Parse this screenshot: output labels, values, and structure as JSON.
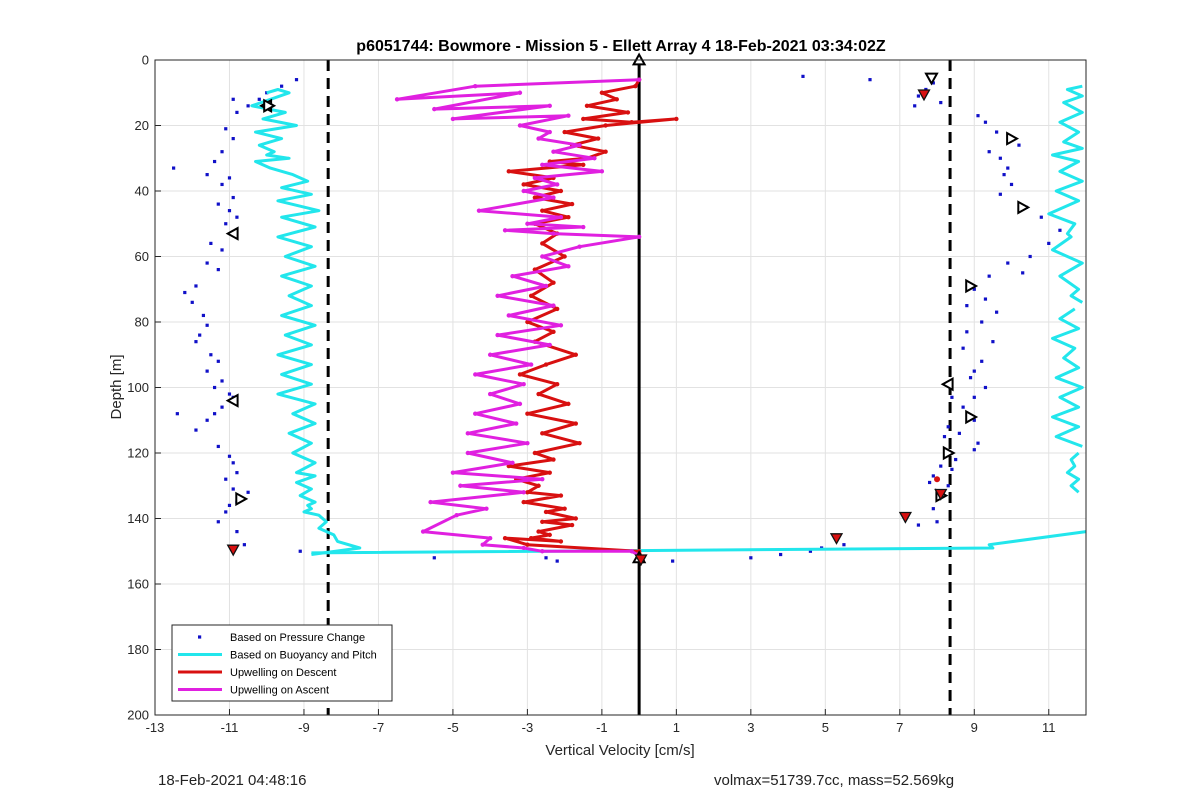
{
  "chart_data": {
    "type": "line",
    "title": "p6051744: Bowmore - Mission 5 - Ellett Array 4 18-Feb-2021 03:34:02Z",
    "xlabel": "Vertical Velocity [cm/s]",
    "ylabel": "Depth [m]",
    "xlim": [
      -13,
      12
    ],
    "ylim": [
      0,
      200
    ],
    "y_reversed": true,
    "grid": true,
    "legend_position": "bottom-left",
    "xticks": [
      -13,
      -11,
      -9,
      -7,
      -5,
      -3,
      -1,
      1,
      3,
      5,
      7,
      9,
      11
    ],
    "yticks": [
      0,
      20,
      40,
      60,
      80,
      100,
      120,
      140,
      160,
      180,
      200
    ],
    "vlines": [
      {
        "x": -8.35,
        "style": "dashed",
        "color": "#000000"
      },
      {
        "x": 0.0,
        "style": "solid",
        "color": "#000000"
      },
      {
        "x": 8.35,
        "style": "dashed",
        "color": "#000000"
      }
    ],
    "series": [
      {
        "name": "Based on Pressure Change",
        "style": "dots",
        "color": "#1010c8",
        "x": [
          -9.2,
          -9.6,
          -10.0,
          -10.2,
          -10.9,
          -10.5,
          -10.8,
          -11.1,
          -10.9,
          -11.2,
          -11.4,
          -12.5,
          -11.6,
          -11.0,
          -11.2,
          -10.9,
          -11.3,
          -11.0,
          -10.8,
          -11.1,
          -11.5,
          -11.2,
          -11.6,
          -11.3,
          -11.9,
          -12.2,
          -12.0,
          -11.7,
          -11.6,
          -11.8,
          -11.9,
          -11.5,
          -11.3,
          -11.6,
          -11.2,
          -11.4,
          -11.0,
          -10.9,
          -11.2,
          -11.4,
          -12.4,
          -11.6,
          -11.9,
          -11.3,
          -11.0,
          -10.9,
          -10.8,
          -11.1,
          -10.9,
          -10.8,
          -10.5,
          -11.0,
          -11.1,
          -11.3,
          -10.8,
          -10.6,
          -9.1,
          -5.5,
          -2.5,
          -2.2,
          0.9,
          3.0,
          3.8,
          4.6,
          4.9,
          5.5,
          4.4,
          6.2,
          7.4,
          7.5,
          7.7,
          8.1,
          7.9,
          9.1,
          9.3,
          9.6,
          9.4,
          9.7,
          10.2,
          9.9,
          9.8,
          10.0,
          9.7,
          10.4,
          10.8,
          11.3,
          11.0,
          10.5,
          10.3,
          9.9,
          9.4,
          9.0,
          9.3,
          8.8,
          9.6,
          9.2,
          8.8,
          8.7,
          9.5,
          9.2,
          9.0,
          8.9,
          9.3,
          9.0,
          8.4,
          8.7,
          9.0,
          8.3,
          8.2,
          8.6,
          9.1,
          9.0,
          8.5,
          8.1,
          7.9,
          8.4,
          7.8,
          8.3,
          7.9,
          8.0,
          7.5
        ],
        "y": [
          6,
          8,
          10,
          12,
          12,
          14,
          16,
          21,
          24,
          28,
          31,
          33,
          35,
          36,
          38,
          42,
          44,
          46,
          48,
          50,
          56,
          58,
          62,
          64,
          69,
          71,
          74,
          78,
          81,
          84,
          86,
          90,
          92,
          95,
          98,
          100,
          102,
          103,
          106,
          108,
          108,
          110,
          113,
          118,
          121,
          123,
          126,
          128,
          131,
          135,
          132,
          136,
          138,
          141,
          144,
          148,
          150,
          152,
          152,
          153,
          153,
          152,
          151,
          150,
          149,
          148,
          5,
          6,
          14,
          11,
          9,
          13,
          7,
          17,
          19,
          22,
          28,
          30,
          26,
          33,
          35,
          38,
          41,
          45,
          48,
          52,
          56,
          60,
          65,
          62,
          66,
          70,
          73,
          75,
          77,
          80,
          83,
          88,
          86,
          92,
          95,
          97,
          100,
          103,
          103,
          106,
          110,
          112,
          115,
          114,
          117,
          119,
          122,
          124,
          127,
          125,
          129,
          130,
          137,
          141,
          142
        ]
      },
      {
        "name": "Based on Buoyancy and Pitch",
        "style": "line",
        "color": "#22e6ec",
        "segments": [
          {
            "x": [
              -10.0,
              -9.7,
              -9.4,
              -10.4,
              -9.5,
              -10.1,
              -9.2,
              -10.3,
              -9.6,
              -10.2,
              -9.8,
              -10.0,
              -9.4,
              -10.3,
              -9.9,
              -9.3,
              -8.9,
              -9.6,
              -8.8,
              -9.7,
              -8.6,
              -9.6,
              -8.7,
              -9.7,
              -8.8,
              -9.5,
              -8.7,
              -9.6,
              -8.8,
              -9.4,
              -8.8,
              -9.6,
              -8.7,
              -9.5,
              -8.8,
              -9.7,
              -8.8,
              -9.6,
              -8.8,
              -9.7,
              -8.7,
              -9.3,
              -8.7,
              -9.4,
              -8.8,
              -9.3,
              -8.7,
              -9.2,
              -8.7,
              -9.2,
              -8.8,
              -9.1,
              -8.7,
              -8.9,
              -8.8,
              -9.0,
              -8.6,
              -8.4,
              -8.6,
              -8.2,
              -8.1,
              -7.5,
              -8.8
            ],
            "y": [
              10,
              9,
              10,
              14,
              16,
              18,
              20,
              22,
              24,
              26,
              28,
              29,
              30,
              31,
              33,
              35,
              37,
              39,
              41,
              43,
              46,
              48,
              51,
              54,
              57,
              60,
              63,
              66,
              69,
              72,
              75,
              78,
              81,
              84,
              87,
              90,
              93,
              96,
              99,
              102,
              105,
              108,
              111,
              114,
              117,
              120,
              123,
              126,
              127,
              129,
              131,
              133,
              135,
              136,
              137,
              138,
              139,
              141,
              143,
              145,
              147,
              149,
              151
            ]
          },
          {
            "x": [
              -8.8,
              9.5,
              9.4,
              12.0
            ],
            "y": [
              150.5,
              149,
              148,
              144
            ]
          },
          {
            "x": [
              11.9,
              11.5,
              11.9,
              11.4,
              11.9,
              11.3,
              11.8,
              11.4,
              11.9,
              11.1,
              11.8,
              11.3,
              11.9,
              11.2,
              11.8,
              11.0,
              11.7,
              11.5,
              11.6,
              11.1,
              11.9,
              11.3,
              11.8,
              11.6,
              11.9
            ],
            "y": [
              8,
              9,
              11,
              13,
              16,
              19,
              22,
              25,
              27,
              29,
              31,
              34,
              37,
              40,
              43,
              47,
              50,
              53,
              54,
              58,
              62,
              66,
              70,
              72,
              74
            ]
          },
          {
            "x": [
              11.7,
              11.3,
              11.8,
              11.1,
              11.7,
              11.4,
              11.8,
              11.2,
              11.9,
              11.3,
              11.8,
              11.1,
              11.8,
              11.2,
              11.9
            ],
            "y": [
              76,
              79,
              82,
              85,
              88,
              91,
              94,
              97,
              100,
              103,
              106,
              109,
              112,
              115,
              118
            ]
          },
          {
            "x": [
              11.8,
              11.6,
              11.7,
              11.5,
              11.8,
              11.6,
              11.8
            ],
            "y": [
              120,
              122,
              124,
              126,
              128,
              130,
              132
            ]
          }
        ]
      },
      {
        "name": "Upwelling on Descent",
        "style": "line-dots",
        "color": "#d81010",
        "x": [
          0.0,
          -0.1,
          -1.0,
          -0.6,
          -1.4,
          -0.3,
          -1.5,
          -0.2,
          1.0,
          -0.9,
          -2.0,
          -1.1,
          -1.8,
          -0.9,
          -1.4,
          -2.4,
          -1.5,
          -3.5,
          -2.3,
          -3.1,
          -2.1,
          -2.8,
          -1.8,
          -2.6,
          -1.9,
          -2.8,
          -2.2,
          -2.6,
          -2.0,
          -2.8,
          -2.3,
          -2.9,
          -2.2,
          -3.0,
          -2.3,
          -2.8,
          -1.7,
          -2.5,
          -3.2,
          -2.2,
          -2.7,
          -1.9,
          -3.0,
          -1.7,
          -2.6,
          -1.6,
          -2.8,
          -2.3,
          -3.5,
          -2.4,
          -3.3,
          -2.7,
          -3.0,
          -2.1,
          -3.1,
          -2.0,
          -2.5,
          -1.7,
          -2.6,
          -1.8,
          -2.7,
          -2.4,
          -2.9,
          -2.1,
          -3.6,
          -3.0,
          0.0,
          0.1
        ],
        "y": [
          6,
          8,
          10,
          12,
          14,
          16,
          18,
          19,
          18,
          20,
          22,
          24,
          26,
          28,
          30,
          31,
          32,
          34,
          36,
          38,
          40,
          42,
          44,
          46,
          48,
          50,
          53,
          56,
          60,
          64,
          68,
          72,
          76,
          80,
          83,
          86,
          90,
          93,
          96,
          99,
          102,
          105,
          108,
          111,
          114,
          117,
          120,
          122,
          124,
          126,
          128,
          130,
          132,
          133,
          135,
          137,
          138,
          140,
          141,
          142,
          144,
          145,
          146,
          147,
          146,
          148,
          150,
          153
        ]
      },
      {
        "name": "Upwelling on Ascent",
        "style": "line-dots",
        "color": "#e020e0",
        "x": [
          0.0,
          -4.4,
          -6.5,
          -3.2,
          -5.5,
          -2.4,
          -5.0,
          -1.9,
          -3.2,
          -2.4,
          -2.7,
          -1.6,
          -2.3,
          -1.2,
          -2.6,
          -1.0,
          -2.8,
          -2.2,
          -3.1,
          -2.3,
          -4.3,
          -2.1,
          -3.0,
          -1.5,
          -3.6,
          -2.3,
          0.0,
          -1.6,
          -2.6,
          -1.9,
          -3.4,
          -2.5,
          -3.8,
          -2.3,
          -3.5,
          -2.1,
          -3.8,
          -2.4,
          -4.0,
          -2.9,
          -4.4,
          -3.1,
          -4.0,
          -3.2,
          -4.4,
          -3.3,
          -4.6,
          -3.0,
          -4.6,
          -3.4,
          -5.0,
          -2.6,
          -4.8,
          -3.1,
          -5.6,
          -4.1,
          -4.9,
          -5.8,
          -4.0,
          -4.2,
          -3.1,
          -2.6,
          -0.2,
          0.1
        ],
        "y": [
          6,
          8,
          12,
          10,
          15,
          14,
          18,
          17,
          20,
          22,
          24,
          26,
          28,
          30,
          32,
          34,
          36,
          38,
          40,
          42,
          46,
          48,
          50,
          51,
          52,
          53,
          54,
          57,
          60,
          63,
          66,
          69,
          72,
          75,
          78,
          81,
          84,
          87,
          90,
          93,
          96,
          99,
          102,
          105,
          108,
          111,
          114,
          117,
          120,
          123,
          126,
          128,
          130,
          132,
          135,
          137,
          139,
          144,
          146,
          148,
          149,
          150,
          150,
          152
        ]
      }
    ],
    "markers": [
      {
        "shape": "triangle-up",
        "color": "#000000",
        "points": [
          [
            0.0,
            0
          ],
          [
            0.0,
            152
          ]
        ]
      },
      {
        "shape": "triangle-down",
        "color": "#000000",
        "points": [
          [
            7.85,
            5.5
          ]
        ]
      },
      {
        "shape": "triangle-left",
        "color": "#000000",
        "points": [
          [
            -10.0,
            14
          ],
          [
            -10.9,
            53
          ],
          [
            -10.9,
            104
          ],
          [
            8.3,
            99
          ]
        ]
      },
      {
        "shape": "triangle-right",
        "color": "#000000",
        "points": [
          [
            -9.95,
            14
          ],
          [
            10.0,
            24
          ],
          [
            10.3,
            45
          ],
          [
            8.9,
            69
          ],
          [
            8.9,
            109
          ],
          [
            8.3,
            120
          ],
          [
            -10.7,
            134
          ],
          [
            8.1,
            133
          ]
        ]
      },
      {
        "shape": "red-down",
        "color": "#d81010",
        "points": [
          [
            7.65,
            10.5
          ],
          [
            8.1,
            132.5
          ],
          [
            7.15,
            139.5
          ],
          [
            5.3,
            146
          ],
          [
            -10.9,
            149.5
          ],
          [
            0.05,
            152.5
          ]
        ]
      },
      {
        "shape": "red-dot",
        "color": "#d81010",
        "points": [
          [
            8.0,
            128
          ]
        ]
      }
    ],
    "legend": [
      {
        "label": "Based on Pressure Change",
        "style": "dots",
        "color": "#1010c8"
      },
      {
        "label": "Based on Buoyancy and Pitch",
        "style": "line",
        "color": "#22e6ec"
      },
      {
        "label": "Upwelling on Descent",
        "style": "line",
        "color": "#d81010"
      },
      {
        "label": "Upwelling on Ascent",
        "style": "line",
        "color": "#e020e0"
      }
    ]
  },
  "footer": {
    "left": "18-Feb-2021 04:48:16",
    "right": "volmax=51739.7cc, mass=52.569kg"
  }
}
